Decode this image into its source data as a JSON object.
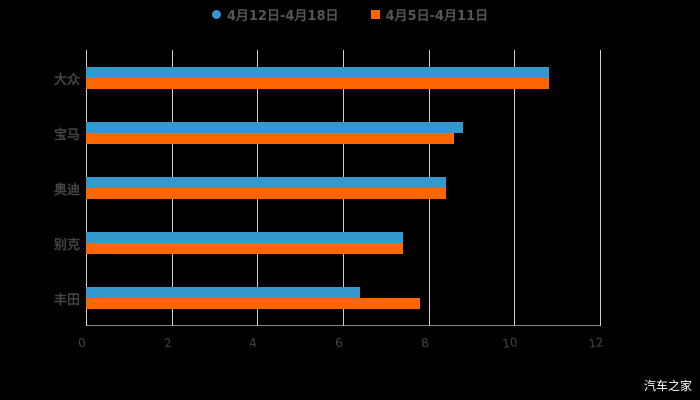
{
  "chart_data": {
    "type": "bar",
    "orientation": "horizontal",
    "title": "",
    "xlabel": "",
    "ylabel": "",
    "categories": [
      "大众",
      "宝马",
      "奥迪",
      "别克",
      "丰田"
    ],
    "series": [
      {
        "name": "4月12日-4月18日",
        "color": "#3399cc",
        "values": [
          10.8,
          8.8,
          8.4,
          7.4,
          6.4
        ]
      },
      {
        "name": "4月5日-4月11日",
        "color": "#ff6600",
        "values": [
          10.8,
          8.6,
          8.4,
          7.4,
          7.8
        ]
      }
    ],
    "xlim": [
      0,
      12
    ],
    "xticks": [
      "0",
      "2",
      "4",
      "6",
      "8",
      "10",
      "12"
    ],
    "grid": true,
    "legend_position": "top"
  },
  "legend": {
    "items": [
      {
        "label": "4月12日-4月18日",
        "color": "#3399cc",
        "marker": "circle"
      },
      {
        "label": "4月5日-4月11日",
        "color": "#ff6600",
        "marker": "square"
      }
    ]
  },
  "watermark": "汽车之家"
}
